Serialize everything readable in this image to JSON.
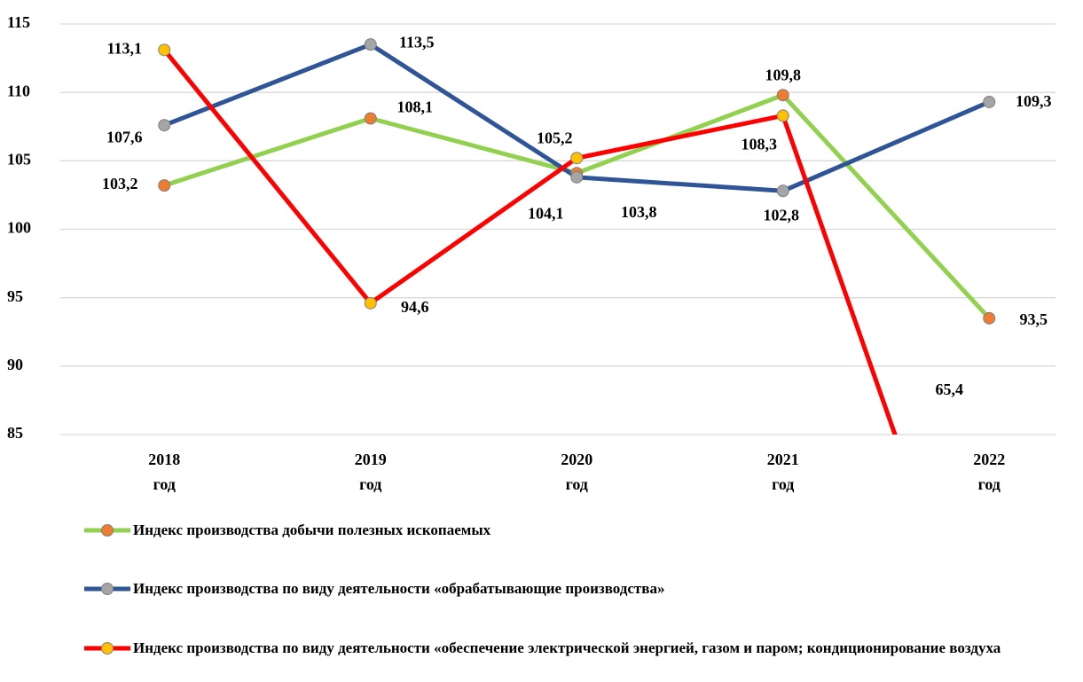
{
  "chart_data": {
    "type": "line",
    "categories": [
      "2018 год",
      "2019 год",
      "2020 год",
      "2021 год",
      "2022 год"
    ],
    "series": [
      {
        "name": "Индекс производства добычи полезных ископаемых",
        "color": "#92d050",
        "marker_color": "#ed7d31",
        "values": [
          103.2,
          108.1,
          104.1,
          109.8,
          93.5
        ],
        "value_labels": [
          "103,2",
          "108,1",
          "104,1",
          "109,8",
          "93,5"
        ]
      },
      {
        "name": "Индекс производства по виду деятельности «обрабатывающие производства»",
        "color": "#2f5597",
        "marker_color": "#a5a5a5",
        "values": [
          107.6,
          113.5,
          103.8,
          102.8,
          109.3
        ],
        "value_labels": [
          "107,6",
          "113,5",
          "103,8",
          "102,8",
          "109,3"
        ]
      },
      {
        "name": "Индекс производства по виду деятельности «обеспечение электрической энергией, газом и паром; кондиционирование воздуха",
        "color": "#ff0000",
        "marker_color": "#ffc000",
        "values": [
          113.1,
          94.6,
          105.2,
          108.3,
          65.4
        ],
        "value_labels": [
          "113,1",
          "94,6",
          "105,2",
          "108,3",
          "65,4"
        ]
      }
    ],
    "ylim": [
      85,
      115
    ],
    "yticks": [
      85,
      90,
      95,
      100,
      105,
      110,
      115
    ],
    "grid": true
  }
}
